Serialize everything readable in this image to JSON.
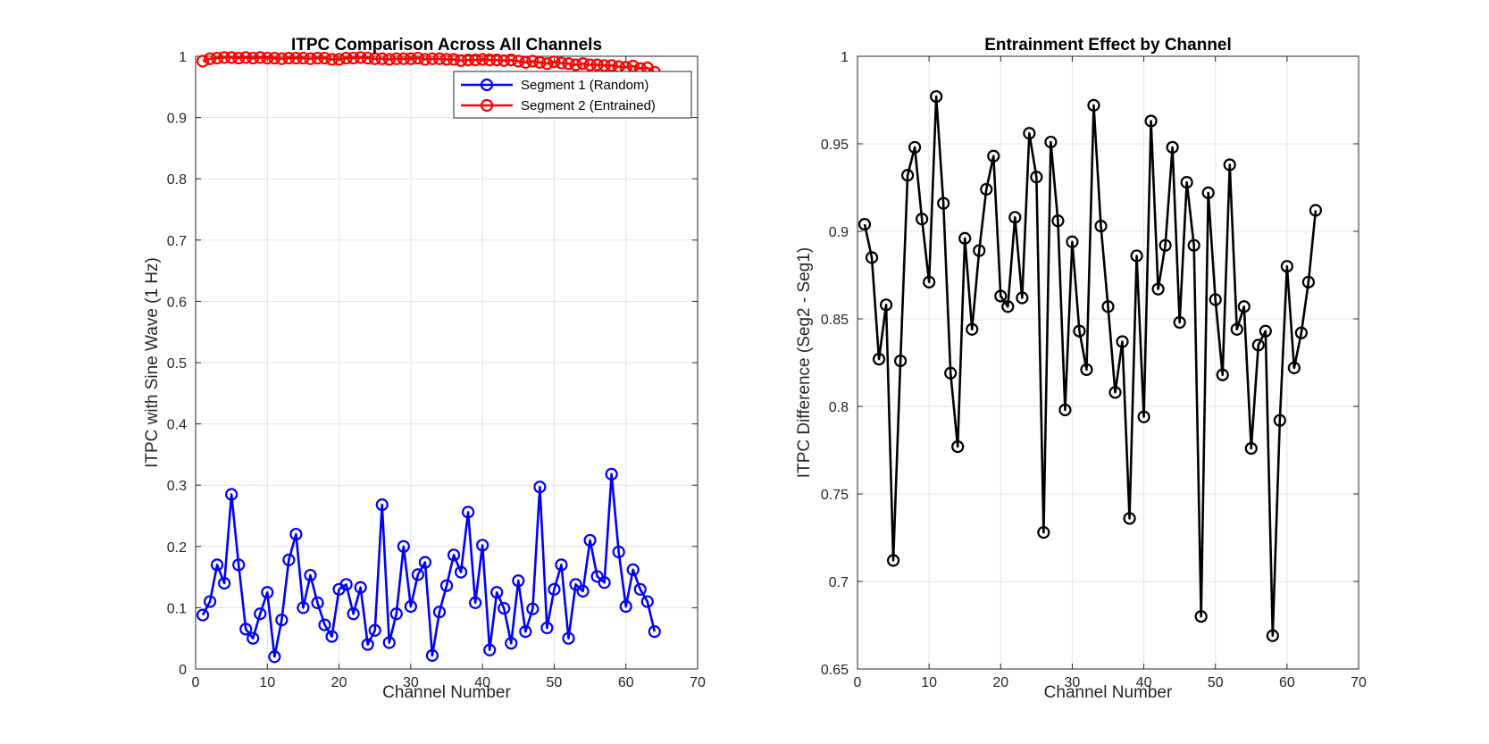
{
  "chart_data": [
    {
      "type": "line",
      "title": "ITPC Comparison Across All Channels",
      "xlabel": "Channel Number",
      "ylabel": "ITPC with Sine Wave (1 Hz)",
      "xlim": [
        0,
        70
      ],
      "ylim": [
        0,
        1
      ],
      "xticks": [
        0,
        10,
        20,
        30,
        40,
        50,
        60,
        70
      ],
      "yticks": [
        0,
        0.1,
        0.2,
        0.3,
        0.4,
        0.5,
        0.6,
        0.7,
        0.8,
        0.9,
        1
      ],
      "grid": true,
      "legend": "top-right",
      "x": [
        1,
        2,
        3,
        4,
        5,
        6,
        7,
        8,
        9,
        10,
        11,
        12,
        13,
        14,
        15,
        16,
        17,
        18,
        19,
        20,
        21,
        22,
        23,
        24,
        25,
        26,
        27,
        28,
        29,
        30,
        31,
        32,
        33,
        34,
        35,
        36,
        37,
        38,
        39,
        40,
        41,
        42,
        43,
        44,
        45,
        46,
        47,
        48,
        49,
        50,
        51,
        52,
        53,
        54,
        55,
        56,
        57,
        58,
        59,
        60,
        61,
        62,
        63,
        64
      ],
      "series": [
        {
          "name": "Segment 1 (Random)",
          "color": "#0000ff",
          "marker": "circle",
          "values": [
            0.088,
            0.11,
            0.17,
            0.14,
            0.285,
            0.17,
            0.065,
            0.05,
            0.09,
            0.125,
            0.02,
            0.08,
            0.178,
            0.22,
            0.1,
            0.153,
            0.108,
            0.072,
            0.053,
            0.13,
            0.138,
            0.09,
            0.133,
            0.04,
            0.063,
            0.268,
            0.043,
            0.09,
            0.2,
            0.102,
            0.154,
            0.174,
            0.022,
            0.093,
            0.136,
            0.186,
            0.158,
            0.256,
            0.108,
            0.202,
            0.031,
            0.125,
            0.099,
            0.042,
            0.144,
            0.061,
            0.098,
            0.297,
            0.067,
            0.13,
            0.17,
            0.05,
            0.138,
            0.127,
            0.21,
            0.151,
            0.141,
            0.318,
            0.191,
            0.102,
            0.162,
            0.13,
            0.11,
            0.061
          ]
        },
        {
          "name": "Segment 2 (Entrained)",
          "color": "#ff0000",
          "marker": "circle",
          "values": [
            0.992,
            0.996,
            0.997,
            0.998,
            0.998,
            0.997,
            0.998,
            0.997,
            0.998,
            0.997,
            0.997,
            0.996,
            0.997,
            0.997,
            0.997,
            0.996,
            0.997,
            0.997,
            0.995,
            0.995,
            0.997,
            0.997,
            0.998,
            0.997,
            0.996,
            0.996,
            0.995,
            0.996,
            0.996,
            0.996,
            0.997,
            0.995,
            0.996,
            0.996,
            0.995,
            0.995,
            0.993,
            0.994,
            0.994,
            0.995,
            0.994,
            0.994,
            0.993,
            0.994,
            0.992,
            0.99,
            0.992,
            0.99,
            0.988,
            0.991,
            0.989,
            0.988,
            0.986,
            0.988,
            0.986,
            0.986,
            0.985,
            0.985,
            0.983,
            0.982,
            0.984,
            0.98,
            0.981,
            0.974
          ]
        }
      ]
    },
    {
      "type": "line",
      "title": "Entrainment Effect by Channel",
      "xlabel": "Channel Number",
      "ylabel": "ITPC Difference (Seg2 - Seg1)",
      "xlim": [
        0,
        70
      ],
      "ylim": [
        0.65,
        1
      ],
      "xticks": [
        0,
        10,
        20,
        30,
        40,
        50,
        60,
        70
      ],
      "yticks": [
        0.65,
        0.7,
        0.75,
        0.8,
        0.85,
        0.9,
        0.95,
        1
      ],
      "grid": true,
      "x": [
        1,
        2,
        3,
        4,
        5,
        6,
        7,
        8,
        9,
        10,
        11,
        12,
        13,
        14,
        15,
        16,
        17,
        18,
        19,
        20,
        21,
        22,
        23,
        24,
        25,
        26,
        27,
        28,
        29,
        30,
        31,
        32,
        33,
        34,
        35,
        36,
        37,
        38,
        39,
        40,
        41,
        42,
        43,
        44,
        45,
        46,
        47,
        48,
        49,
        50,
        51,
        52,
        53,
        54,
        55,
        56,
        57,
        58,
        59,
        60,
        61,
        62,
        63,
        64
      ],
      "series": [
        {
          "color": "#000000",
          "marker": "circle",
          "values": [
            0.904,
            0.885,
            0.827,
            0.858,
            0.712,
            0.826,
            0.932,
            0.948,
            0.907,
            0.871,
            0.977,
            0.916,
            0.819,
            0.777,
            0.896,
            0.844,
            0.889,
            0.924,
            0.943,
            0.863,
            0.857,
            0.908,
            0.862,
            0.956,
            0.931,
            0.728,
            0.951,
            0.906,
            0.798,
            0.894,
            0.843,
            0.821,
            0.972,
            0.903,
            0.857,
            0.808,
            0.837,
            0.736,
            0.886,
            0.794,
            0.963,
            0.867,
            0.892,
            0.948,
            0.848,
            0.928,
            0.892,
            0.68,
            0.922,
            0.861,
            0.818,
            0.938,
            0.844,
            0.857,
            0.776,
            0.835,
            0.843,
            0.669,
            0.792,
            0.88,
            0.822,
            0.842,
            0.871,
            0.912
          ]
        }
      ]
    }
  ]
}
